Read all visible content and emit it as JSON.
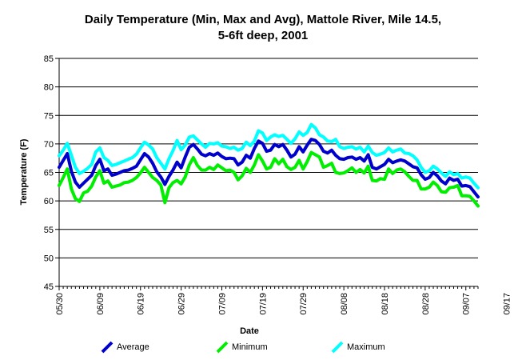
{
  "chart_data": {
    "type": "line",
    "title_line1": "Daily Temperature (Min, Max and Avg), Mattole River, Mile 14.5,",
    "title_line2": "5-6ft deep, 2001",
    "xlabel": "Date",
    "ylabel": "Temperature (F)",
    "ylim": [
      45,
      85
    ],
    "yticks": [
      45,
      50,
      55,
      60,
      65,
      70,
      75,
      80,
      85
    ],
    "grid": true,
    "legend_position": "bottom",
    "xtick_labels": [
      "05/30",
      "06/09",
      "06/19",
      "06/29",
      "07/09",
      "07/19",
      "07/29",
      "08/08",
      "08/18",
      "08/28",
      "09/07",
      "09/17"
    ],
    "x_start": "05/30",
    "series": [
      {
        "name": "Average",
        "color": "#0000cc",
        "values": [
          65.9,
          67.1,
          68.3,
          65.2,
          63.3,
          62.4,
          63.1,
          63.8,
          64.5,
          66.2,
          67.3,
          65.3,
          65.6,
          64.5,
          64.7,
          65.0,
          65.3,
          65.4,
          65.7,
          66.1,
          67.2,
          68.3,
          67.7,
          66.6,
          65.1,
          64.2,
          62.9,
          64.3,
          65.4,
          66.8,
          65.8,
          67.7,
          69.4,
          69.9,
          69.1,
          68.2,
          67.9,
          68.3,
          68.0,
          68.4,
          67.8,
          67.4,
          67.5,
          67.4,
          66.3,
          66.8,
          68.0,
          67.5,
          69.2,
          70.5,
          70.1,
          68.7,
          68.9,
          69.9,
          69.5,
          69.9,
          68.9,
          67.7,
          68.2,
          69.5,
          68.6,
          69.8,
          70.8,
          70.6,
          69.9,
          68.7,
          68.4,
          68.9,
          68.0,
          67.4,
          67.3,
          67.6,
          67.7,
          67.3,
          67.6,
          67.0,
          68.1,
          65.9,
          65.6,
          66.0,
          66.4,
          67.3,
          66.7,
          67.0,
          67.2,
          67.0,
          66.5,
          66.0,
          65.8,
          64.6,
          63.8,
          64.1,
          65.0,
          64.4,
          63.5,
          63.0,
          64.0,
          63.6,
          63.8,
          62.6,
          62.7,
          62.5,
          61.6,
          60.7
        ]
      },
      {
        "name": "Minimum",
        "color": "#00ee00",
        "values": [
          62.7,
          64.1,
          65.6,
          62.1,
          60.4,
          59.9,
          61.4,
          61.7,
          62.6,
          64.2,
          65.3,
          63.1,
          63.5,
          62.4,
          62.6,
          62.8,
          63.2,
          63.3,
          63.6,
          64.1,
          64.9,
          65.9,
          65.0,
          64.1,
          63.6,
          62.8,
          59.7,
          62.3,
          63.2,
          63.6,
          63.0,
          64.2,
          66.3,
          67.6,
          66.2,
          65.4,
          65.4,
          65.9,
          65.5,
          66.3,
          65.8,
          65.3,
          65.4,
          65.0,
          63.7,
          64.4,
          65.7,
          65.0,
          66.3,
          68.1,
          67.0,
          65.6,
          65.9,
          67.4,
          66.5,
          67.3,
          66.0,
          65.5,
          65.9,
          67.1,
          65.6,
          66.9,
          68.5,
          68.1,
          67.7,
          65.9,
          66.2,
          66.6,
          65.0,
          64.8,
          64.9,
          65.3,
          65.8,
          65.0,
          65.5,
          64.9,
          66.1,
          63.6,
          63.5,
          63.9,
          63.8,
          65.6,
          64.8,
          65.4,
          65.6,
          65.1,
          64.3,
          63.6,
          63.6,
          62.1,
          62.1,
          62.4,
          63.3,
          62.7,
          61.6,
          61.5,
          62.3,
          62.4,
          62.7,
          60.9,
          60.9,
          60.8,
          60.0,
          59.1
        ]
      },
      {
        "name": "Maximum",
        "color": "#00ffff",
        "values": [
          67.9,
          68.9,
          70.1,
          68.0,
          65.9,
          64.8,
          65.2,
          65.7,
          66.4,
          68.6,
          69.3,
          67.6,
          67.1,
          66.2,
          66.4,
          66.7,
          67.0,
          67.3,
          67.6,
          68.2,
          69.3,
          70.3,
          69.8,
          69.1,
          67.6,
          66.6,
          65.6,
          67.4,
          68.8,
          70.6,
          69.0,
          69.8,
          71.2,
          71.4,
          70.7,
          70.0,
          69.4,
          70.1,
          70.0,
          70.2,
          69.6,
          69.5,
          69.2,
          69.4,
          68.9,
          69.2,
          70.3,
          69.7,
          70.5,
          72.3,
          71.9,
          70.6,
          71.2,
          71.6,
          71.3,
          71.5,
          70.8,
          70.1,
          70.9,
          72.1,
          71.5,
          72.0,
          73.4,
          72.8,
          71.6,
          71.2,
          70.5,
          70.4,
          70.8,
          69.5,
          69.2,
          69.4,
          69.5,
          69.1,
          69.4,
          68.6,
          69.6,
          68.5,
          68.0,
          68.2,
          68.5,
          69.3,
          68.6,
          68.9,
          69.1,
          68.4,
          68.3,
          67.9,
          67.2,
          65.9,
          65.0,
          65.3,
          66.1,
          65.6,
          64.9,
          64.3,
          65.1,
          64.6,
          64.8,
          64.0,
          64.2,
          64.0,
          63.1,
          62.3
        ]
      }
    ]
  }
}
